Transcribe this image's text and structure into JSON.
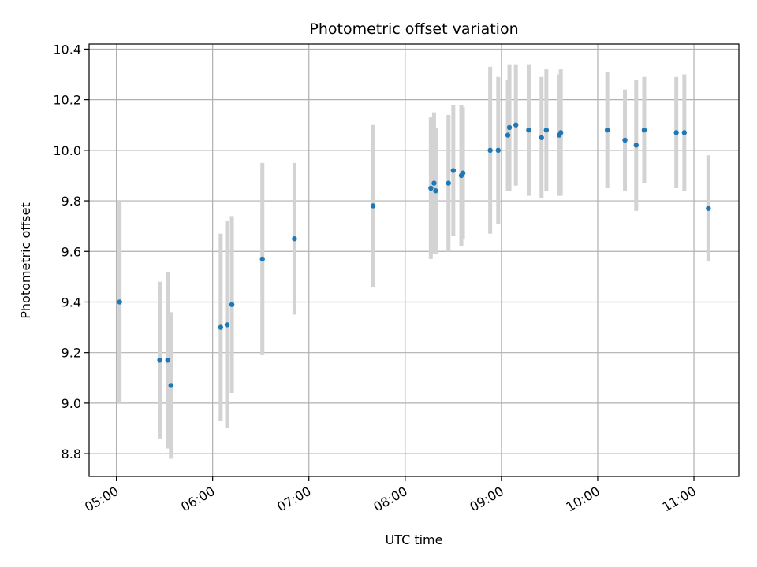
{
  "chart_data": {
    "type": "scatter",
    "title": "Photometric offset variation",
    "xlabel": "UTC time",
    "ylabel": "Photometric offset",
    "xlim": [
      "04:43",
      "11:28"
    ],
    "ylim": [
      8.71,
      10.42
    ],
    "grid": true,
    "xticks": [
      "05:00",
      "06:00",
      "07:00",
      "08:00",
      "09:00",
      "10:00",
      "11:00"
    ],
    "yticks": [
      8.8,
      9.0,
      9.2,
      9.4,
      9.6,
      9.8,
      10.0,
      10.2,
      10.4
    ],
    "marker_color": "#1f77b4",
    "errorbar_color": "#d3d3d3",
    "points": [
      {
        "x": "05:02",
        "y": 9.4,
        "err": 0.4
      },
      {
        "x": "05:27",
        "y": 9.17,
        "err": 0.31
      },
      {
        "x": "05:32",
        "y": 9.17,
        "err": 0.35
      },
      {
        "x": "05:34",
        "y": 9.07,
        "err": 0.29
      },
      {
        "x": "06:05",
        "y": 9.3,
        "err": 0.37
      },
      {
        "x": "06:09",
        "y": 9.31,
        "err": 0.41
      },
      {
        "x": "06:12",
        "y": 9.39,
        "err": 0.35
      },
      {
        "x": "06:31",
        "y": 9.57,
        "err": 0.38
      },
      {
        "x": "06:51",
        "y": 9.65,
        "err": 0.3
      },
      {
        "x": "07:40",
        "y": 9.78,
        "err": 0.32
      },
      {
        "x": "08:16",
        "y": 9.85,
        "err": 0.28
      },
      {
        "x": "08:18",
        "y": 9.87,
        "err": 0.28
      },
      {
        "x": "08:19",
        "y": 9.84,
        "err": 0.25
      },
      {
        "x": "08:27",
        "y": 9.87,
        "err": 0.27
      },
      {
        "x": "08:30",
        "y": 9.92,
        "err": 0.26
      },
      {
        "x": "08:35",
        "y": 9.9,
        "err": 0.28
      },
      {
        "x": "08:36",
        "y": 9.91,
        "err": 0.26
      },
      {
        "x": "08:53",
        "y": 10.0,
        "err": 0.33
      },
      {
        "x": "08:58",
        "y": 10.0,
        "err": 0.29
      },
      {
        "x": "09:04",
        "y": 10.06,
        "err": 0.22
      },
      {
        "x": "09:05",
        "y": 10.09,
        "err": 0.25
      },
      {
        "x": "09:09",
        "y": 10.1,
        "err": 0.24
      },
      {
        "x": "09:17",
        "y": 10.08,
        "err": 0.26
      },
      {
        "x": "09:25",
        "y": 10.05,
        "err": 0.24
      },
      {
        "x": "09:28",
        "y": 10.08,
        "err": 0.24
      },
      {
        "x": "09:36",
        "y": 10.06,
        "err": 0.24
      },
      {
        "x": "09:37",
        "y": 10.07,
        "err": 0.25
      },
      {
        "x": "10:06",
        "y": 10.08,
        "err": 0.23
      },
      {
        "x": "10:17",
        "y": 10.04,
        "err": 0.2
      },
      {
        "x": "10:24",
        "y": 10.02,
        "err": 0.26
      },
      {
        "x": "10:29",
        "y": 10.08,
        "err": 0.21
      },
      {
        "x": "10:49",
        "y": 10.07,
        "err": 0.22
      },
      {
        "x": "10:54",
        "y": 10.07,
        "err": 0.23
      },
      {
        "x": "11:09",
        "y": 9.77,
        "err": 0.21
      }
    ]
  }
}
